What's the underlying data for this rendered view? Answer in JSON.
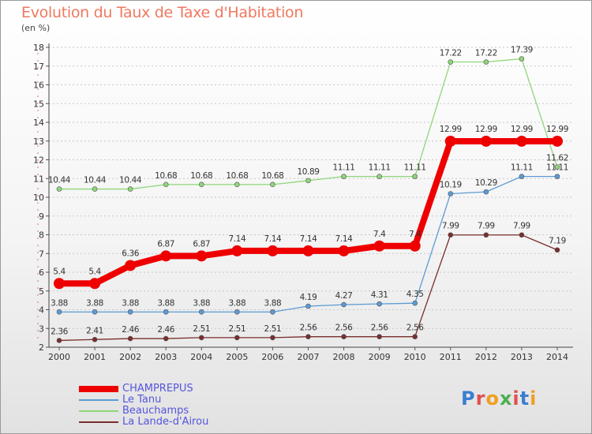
{
  "header": {
    "title": "Evolution du Taux de Taxe d'Habitation",
    "subtitle": "(en %)"
  },
  "logo": {
    "text": "Proxiti",
    "colors": [
      "#3a7fd0",
      "#e05050",
      "#f0a020",
      "#4caf50",
      "#e05050",
      "#3a7fd0",
      "#f0a020"
    ]
  },
  "chart_data": {
    "type": "line",
    "title": "Evolution du Taux de Taxe d'Habitation",
    "ylabel": "(en %)",
    "xlabel": "",
    "x": [
      "2000",
      "2001",
      "2002",
      "2003",
      "2004",
      "2005",
      "2006",
      "2007",
      "2008",
      "2009",
      "2010",
      "2011",
      "2012",
      "2013",
      "2014"
    ],
    "ylim": [
      2,
      18
    ],
    "yticks": [
      2,
      3,
      4,
      5,
      6,
      7,
      8,
      9,
      10,
      11,
      12,
      13,
      14,
      15,
      16,
      17,
      18
    ],
    "grid": "horizontal dashed",
    "legend_position": "bottom-left",
    "series": [
      {
        "name": "CHAMPREPUS",
        "color": "#ee0000",
        "values": [
          5.4,
          5.4,
          6.36,
          6.87,
          6.87,
          7.14,
          7.14,
          7.14,
          7.14,
          7.4,
          7.4,
          12.99,
          12.99,
          12.99,
          12.99
        ],
        "labels": [
          "5.4",
          "5.4",
          "6.36",
          "6.87",
          "6.87",
          "7.14",
          "7.14",
          "7.14",
          "7.14",
          "7.4",
          "7.4",
          "12.99",
          "12.99",
          "12.99",
          "12.99"
        ]
      },
      {
        "name": "Le Tanu",
        "color": "#5b9bd5",
        "values": [
          3.88,
          3.88,
          3.88,
          3.88,
          3.88,
          3.88,
          3.88,
          4.19,
          4.27,
          4.31,
          4.35,
          10.19,
          10.29,
          11.11,
          11.11
        ],
        "labels": [
          "3.88",
          "3.88",
          "3.88",
          "3.88",
          "3.88",
          "3.88",
          "3.88",
          "4.19",
          "4.27",
          "4.31",
          "4.35",
          "10.19",
          "10.29",
          "11.11",
          "11.11"
        ]
      },
      {
        "name": "Beauchamps",
        "color": "#8fd67a",
        "values": [
          10.44,
          10.44,
          10.44,
          10.68,
          10.68,
          10.68,
          10.68,
          10.89,
          11.11,
          11.11,
          11.11,
          17.22,
          17.22,
          17.39,
          11.62
        ],
        "labels": [
          "10.44",
          "10.44",
          "10.44",
          "10.68",
          "10.68",
          "10.68",
          "10.68",
          "10.89",
          "11.11",
          "11.11",
          "11.11",
          "17.22",
          "17.22",
          "17.39",
          "11.62"
        ]
      },
      {
        "name": "La Lande-d'Airou",
        "color": "#7a2e2e",
        "values": [
          2.36,
          2.41,
          2.46,
          2.46,
          2.51,
          2.51,
          2.51,
          2.56,
          2.56,
          2.56,
          2.56,
          7.99,
          7.99,
          7.99,
          7.19
        ],
        "labels": [
          "2.36",
          "2.41",
          "2.46",
          "2.46",
          "2.51",
          "2.51",
          "2.51",
          "2.56",
          "2.56",
          "2.56",
          "2.56",
          "7.99",
          "7.99",
          "7.99",
          "7.19"
        ]
      }
    ]
  }
}
